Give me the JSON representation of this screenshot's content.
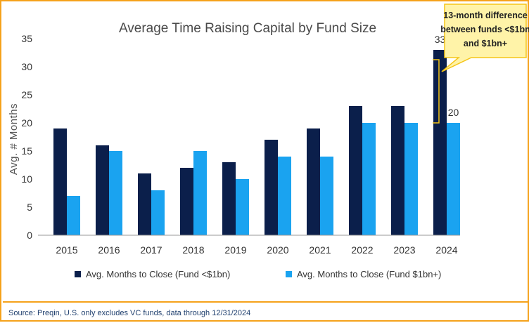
{
  "chart_data": {
    "type": "bar",
    "title": "Average Time Raising Capital by Fund Size",
    "ylabel": "Avg. # Months",
    "xlabel": "",
    "categories": [
      "2015",
      "2016",
      "2017",
      "2018",
      "2019",
      "2020",
      "2021",
      "2022",
      "2023",
      "2024"
    ],
    "series": [
      {
        "name": "Avg. Months to Close (Fund <$1bn)",
        "color": "#0b1f4b",
        "values": [
          19,
          16,
          11,
          12,
          13,
          17,
          19,
          23,
          23,
          33
        ]
      },
      {
        "name": "Avg. Months to Close (Fund $1bn+)",
        "color": "#1aa3f0",
        "values": [
          7,
          15,
          8,
          15,
          10,
          14,
          14,
          20,
          20,
          20
        ]
      }
    ],
    "ylim": [
      0,
      35
    ],
    "yticks": [
      0,
      5,
      10,
      15,
      20,
      25,
      30,
      35
    ],
    "grid": false,
    "legend_position": "bottom",
    "data_labels": [
      {
        "category": "2024",
        "series": 0,
        "text": "33"
      },
      {
        "category": "2024",
        "series": 1,
        "text": "20"
      }
    ],
    "annotation": {
      "text_lines": [
        "13-month difference",
        "between funds <$1bn",
        "and $1bn+"
      ],
      "fill": "#fff3a8",
      "border": "#f5c518"
    }
  },
  "source_note": "Source: Preqin, U.S. only excludes VC funds, data through 12/31/2024",
  "colors": {
    "frame_border": "#f5a21b",
    "axis": "#999999"
  }
}
